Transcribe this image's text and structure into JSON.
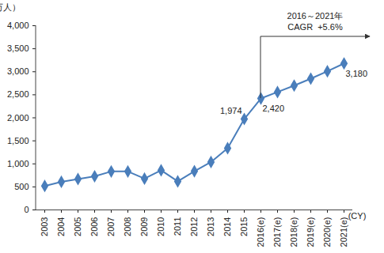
{
  "chart_data": {
    "type": "line",
    "y_label": "（万人）",
    "x_label": "(CY)",
    "categories": [
      "2003",
      "2004",
      "2005",
      "2006",
      "2007",
      "2008",
      "2009",
      "2010",
      "2011",
      "2012",
      "2013",
      "2014",
      "2015",
      "2016(e)",
      "2017(e)",
      "2018(e)",
      "2019(e)",
      "2020(e)",
      "2021(e)"
    ],
    "values": [
      520,
      610,
      670,
      730,
      835,
      835,
      680,
      860,
      620,
      840,
      1040,
      1340,
      1974,
      2420,
      2560,
      2700,
      2850,
      3010,
      3180
    ],
    "value_labels": [
      null,
      null,
      null,
      null,
      null,
      null,
      null,
      null,
      null,
      null,
      null,
      null,
      "1,974",
      "2,420",
      null,
      null,
      null,
      null,
      "3,180"
    ],
    "data_labels": true,
    "color": "#4a7ebb",
    "marker": "diamond",
    "ylim": [
      0,
      4000
    ],
    "yticks": [
      0,
      500,
      {
        "value": 1000,
        "label": "1,000"
      },
      {
        "value": 1500,
        "label": "1,500"
      },
      {
        "value": 2000,
        "label": "2,000"
      },
      {
        "value": 2500,
        "label": "2,500"
      },
      {
        "value": 3000,
        "label": "3,000"
      },
      {
        "value": 3500,
        "label": "3,500"
      },
      {
        "value": 4000,
        "label": "4,000"
      }
    ],
    "grid": false,
    "annotation": {
      "x": "2016(e)",
      "lines": [
        "2016～2021年",
        "CAGR  +5.6%"
      ]
    }
  }
}
